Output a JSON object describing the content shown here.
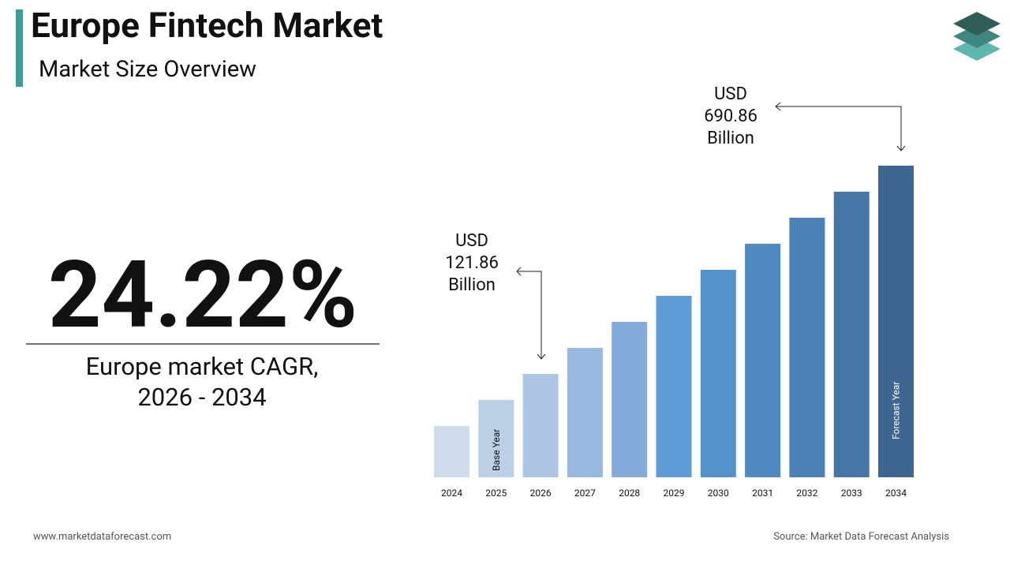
{
  "header": {
    "title": "Europe Fintech Market",
    "subtitle": "Market Size Overview"
  },
  "cagr": {
    "value": "24.22%",
    "lines": [
      "Europe market CAGR,",
      "2026 - 2034"
    ]
  },
  "footer": {
    "website": "www.marketdataforecast.com",
    "source": "Source: Market Data Forecast Analysis"
  },
  "chart_data": {
    "type": "bar",
    "categories": [
      "2024",
      "2025",
      "2026",
      "2027",
      "2028",
      "2029",
      "2030",
      "2031",
      "2032",
      "2033",
      "2034"
    ],
    "values": [
      78.97,
      98.1,
      121.86,
      151.38,
      188.04,
      233.59,
      290.17,
      360.45,
      447.75,
      556.19,
      690.86
    ],
    "colors": [
      "#cfdcec",
      "#bccfe7",
      "#adc6e5",
      "#98b8df",
      "#84acdb",
      "#5f9bd6",
      "#5592cc",
      "#4f89c2",
      "#4a80b6",
      "#4476a8",
      "#3d6690"
    ],
    "bar_labels": [
      null,
      "Base Year",
      null,
      null,
      null,
      null,
      null,
      null,
      null,
      null,
      "Forecast Year"
    ],
    "ylim": [
      51.5,
      690.86
    ],
    "log_scale": true,
    "annotations": [
      {
        "lines": [
          "USD",
          "121.86",
          "Billion"
        ]
      },
      {
        "lines": [
          "USD",
          "690.86",
          "Billion"
        ]
      }
    ]
  }
}
